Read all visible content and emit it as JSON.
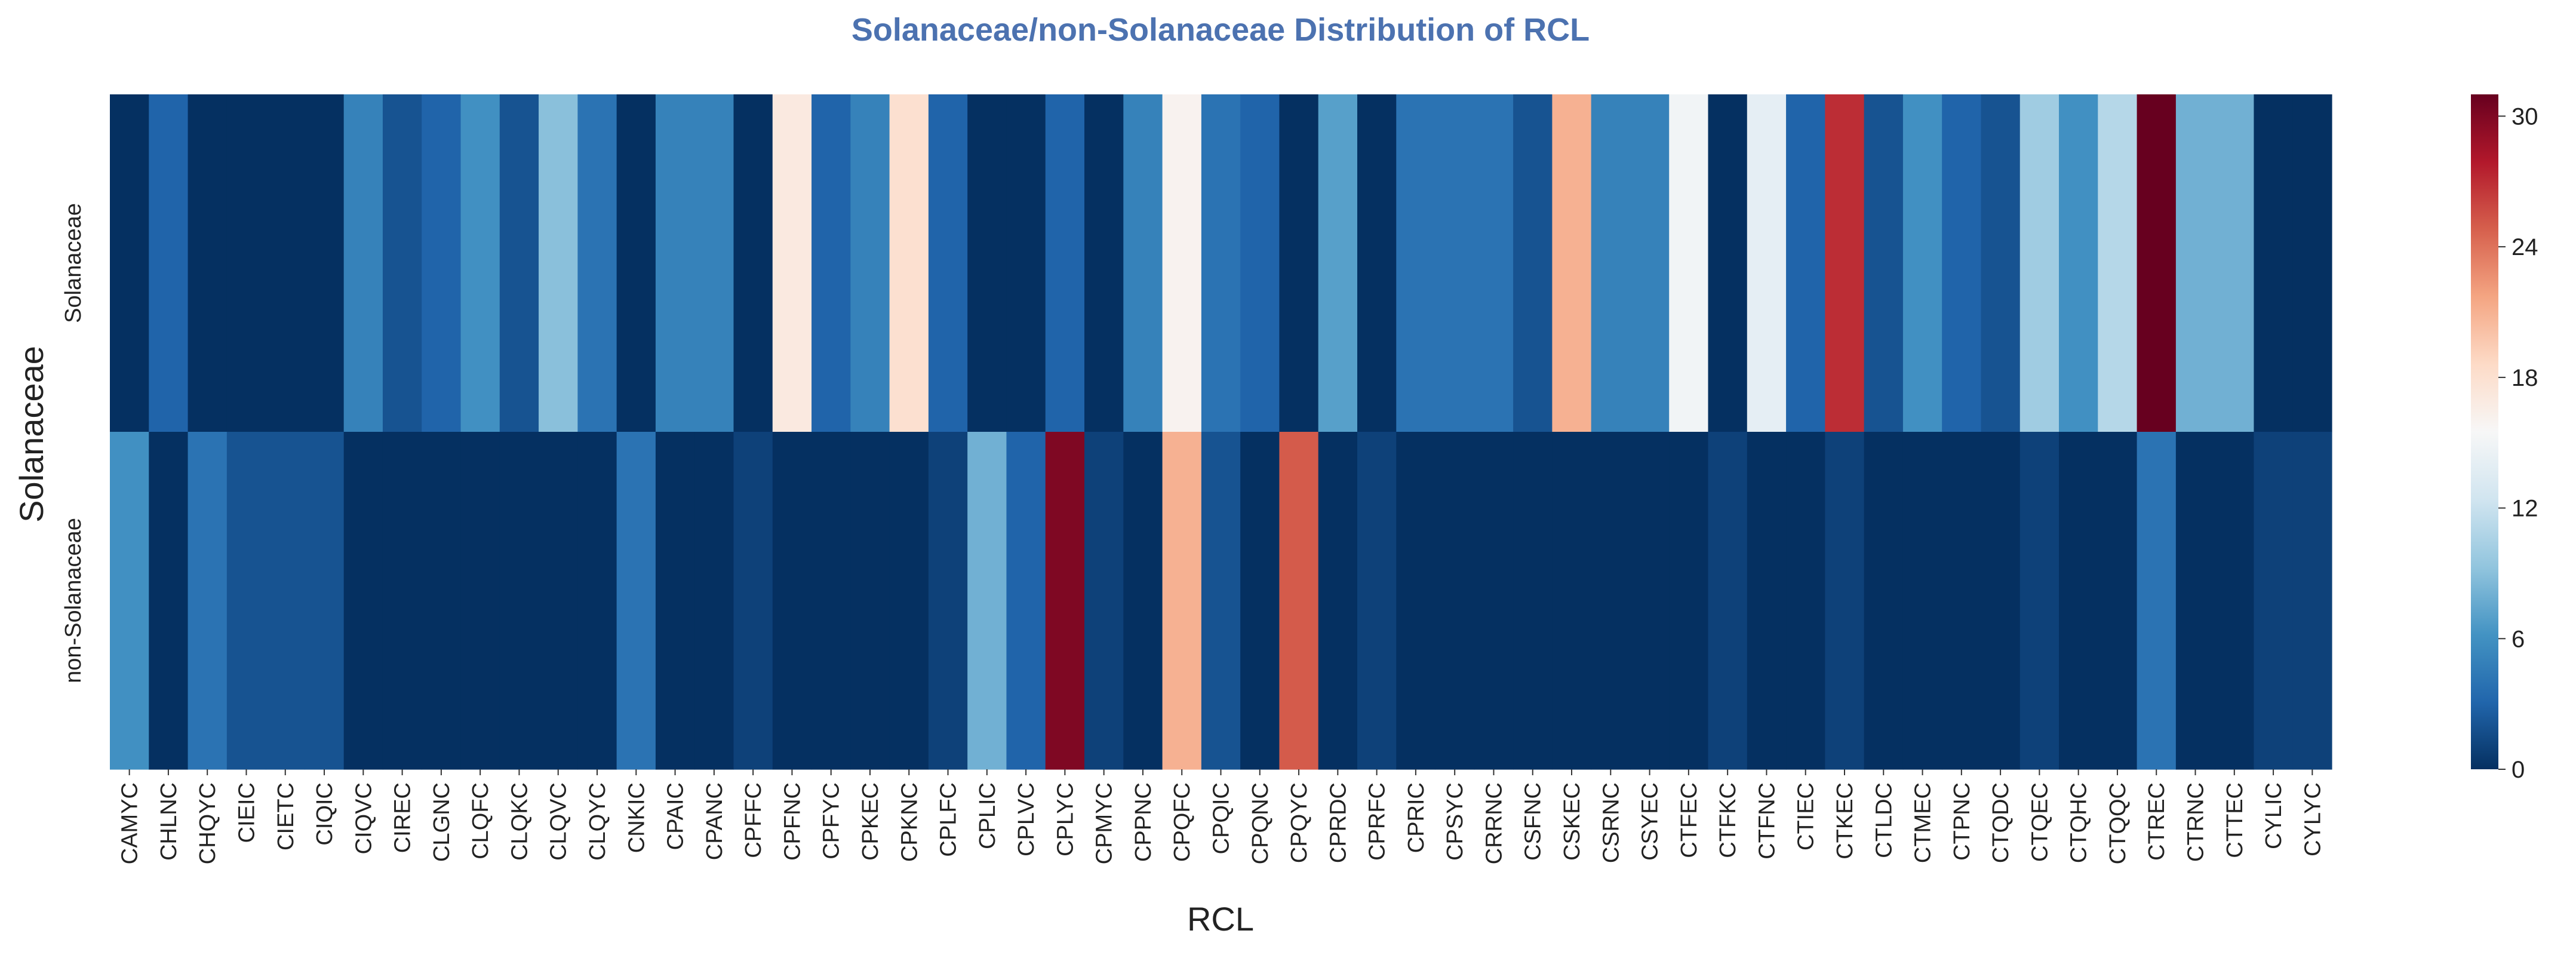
{
  "chart_data": {
    "type": "heatmap",
    "title": "Solanaceae/non-Solanaceae Distribution of RCL",
    "xlabel": "RCL",
    "ylabel": "Solanaceae",
    "columns": [
      "CAMYC",
      "CHLNC",
      "CHQYC",
      "CIEIC",
      "CIETC",
      "CIQIC",
      "CIQVC",
      "CIREC",
      "CLGNC",
      "CLQFC",
      "CLQKC",
      "CLQVC",
      "CLQYC",
      "CNKIC",
      "CPAIC",
      "CPANC",
      "CPFFC",
      "CPFNC",
      "CPFYC",
      "CPKEC",
      "CPKNC",
      "CPLFC",
      "CPLIC",
      "CPLVC",
      "CPLYC",
      "CPMYC",
      "CPPNC",
      "CPQFC",
      "CPQIC",
      "CPQNC",
      "CPQYC",
      "CPRDC",
      "CPRFC",
      "CPRIC",
      "CPSYC",
      "CRRNC",
      "CSFNC",
      "CSKEC",
      "CSRNC",
      "CSYEC",
      "CTFEC",
      "CTFKC",
      "CTFNC",
      "CTIEC",
      "CTKEC",
      "CTLDC",
      "CTMEC",
      "CTPNC",
      "CTQDC",
      "CTQEC",
      "CTQHC",
      "CTQQC",
      "CTREC",
      "CTRNC",
      "CTTEC",
      "CYLIC",
      "CYLYC"
    ],
    "rows": [
      "Solanaceae",
      "non-Solanaceae"
    ],
    "values": [
      [
        0,
        3,
        0,
        0,
        0,
        0,
        5,
        2,
        3,
        6,
        2,
        9,
        4,
        0,
        5,
        5,
        0,
        17,
        3,
        5,
        18,
        3,
        0,
        0,
        3,
        0,
        5,
        16,
        4,
        3,
        0,
        7,
        0,
        4,
        4,
        4,
        2,
        21,
        5,
        5,
        15,
        0,
        14,
        3,
        27,
        2,
        6,
        3,
        2,
        10,
        6,
        11,
        31,
        8,
        8,
        0,
        0
      ],
      [
        6,
        0,
        4,
        2,
        2,
        2,
        0,
        0,
        0,
        0,
        0,
        0,
        0,
        4,
        0,
        0,
        1,
        0,
        0,
        0,
        0,
        1,
        8,
        3,
        30,
        1,
        0,
        21,
        2,
        0,
        25,
        0,
        1,
        0,
        0,
        0,
        0,
        0,
        0,
        0,
        0,
        1,
        0,
        0,
        1,
        0,
        0,
        0,
        0,
        1,
        0,
        0,
        4,
        0,
        0,
        1,
        1
      ]
    ],
    "vmin": 0,
    "vmax": 31,
    "colormap": "RdBu_r",
    "colorbar_ticks": [
      0,
      6,
      12,
      18,
      24,
      30
    ]
  }
}
